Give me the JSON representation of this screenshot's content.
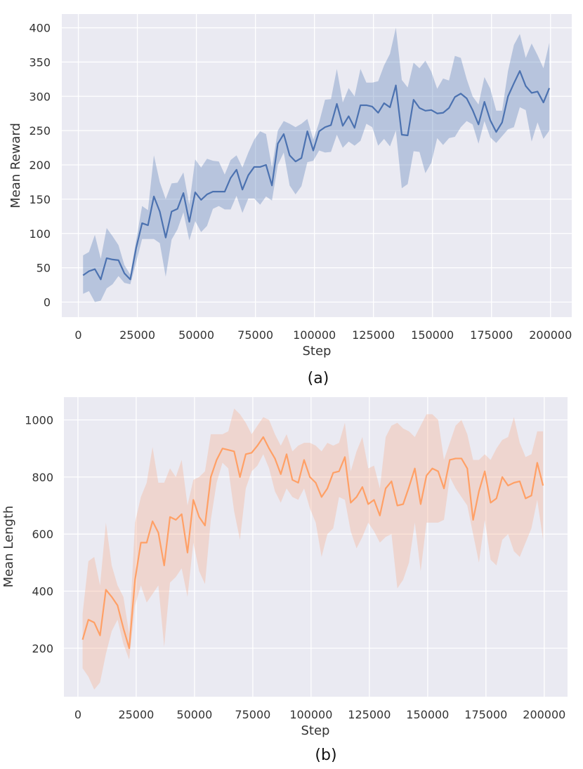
{
  "chart_data": [
    {
      "type": "line",
      "caption": "(a)",
      "xlabel": "Step",
      "ylabel": "Mean Reward",
      "xlim": [
        -7000,
        209000
      ],
      "ylim": [
        -22,
        420
      ],
      "xticks": [
        0,
        25000,
        50000,
        75000,
        100000,
        125000,
        150000,
        175000,
        200000
      ],
      "yticks": [
        0,
        50,
        100,
        150,
        200,
        250,
        300,
        350,
        400
      ],
      "grid": true,
      "legend": "none",
      "colors": {
        "line": "#4c72b0",
        "band": "#4c72b0",
        "background": "#eaeaf2",
        "grid": "#ffffff"
      },
      "x": [
        2000,
        4500,
        7000,
        9500,
        12000,
        14500,
        17000,
        19500,
        22000,
        24500,
        27000,
        29500,
        32000,
        34500,
        37000,
        39500,
        42000,
        44500,
        47000,
        49500,
        52000,
        54500,
        57000,
        59500,
        62000,
        64500,
        67000,
        69500,
        72000,
        74500,
        77000,
        79500,
        82000,
        84500,
        87000,
        89500,
        92000,
        94500,
        97000,
        99500,
        102000,
        104500,
        107000,
        109500,
        112000,
        114500,
        117000,
        119500,
        122000,
        124500,
        127000,
        129500,
        132000,
        134500,
        137000,
        139500,
        142000,
        144500,
        147000,
        149500,
        152000,
        154500,
        157000,
        159500,
        162000,
        164500,
        167000,
        169500,
        172000,
        174500,
        177000,
        179500,
        182000,
        184500,
        187000,
        189500,
        192000,
        194500,
        197000,
        199500
      ],
      "series": [
        {
          "mean": [
            39,
            45,
            48,
            33,
            64,
            62,
            61,
            42,
            33,
            79,
            115,
            112,
            154,
            132,
            94,
            132,
            136,
            159,
            117,
            160,
            149,
            157,
            161,
            161,
            161,
            181,
            193,
            164,
            185,
            197,
            197,
            200,
            170,
            231,
            245,
            214,
            205,
            210,
            249,
            221,
            249,
            255,
            258,
            289,
            257,
            271,
            254,
            287,
            287,
            285,
            276,
            290,
            284,
            316,
            244,
            243,
            295,
            283,
            279,
            280,
            275,
            276,
            283,
            299,
            304,
            297,
            280,
            259,
            292,
            265,
            248,
            262,
            300,
            319,
            337,
            315,
            305,
            307,
            291,
            312
          ],
          "lower": [
            12,
            16,
            0,
            2,
            20,
            26,
            38,
            28,
            26,
            58,
            92,
            92,
            92,
            86,
            37,
            91,
            106,
            131,
            90,
            118,
            102,
            111,
            136,
            140,
            135,
            135,
            155,
            130,
            151,
            151,
            142,
            154,
            148,
            200,
            218,
            170,
            157,
            169,
            204,
            206,
            221,
            218,
            219,
            244,
            225,
            234,
            228,
            235,
            260,
            255,
            228,
            238,
            227,
            250,
            166,
            172,
            220,
            219,
            188,
            203,
            239,
            229,
            239,
            241,
            255,
            264,
            259,
            231,
            264,
            240,
            232,
            242,
            252,
            255,
            284,
            280,
            234,
            262,
            238,
            250
          ],
          "upper": [
            68,
            73,
            98,
            63,
            108,
            96,
            83,
            54,
            40,
            90,
            140,
            134,
            214,
            175,
            150,
            173,
            174,
            189,
            142,
            208,
            196,
            209,
            206,
            205,
            186,
            207,
            214,
            196,
            218,
            237,
            249,
            245,
            196,
            250,
            264,
            260,
            255,
            260,
            267,
            237,
            262,
            295,
            296,
            340,
            291,
            312,
            300,
            340,
            320,
            320,
            322,
            345,
            362,
            400,
            324,
            313,
            349,
            341,
            352,
            336,
            311,
            326,
            323,
            359,
            356,
            325,
            300,
            288,
            328,
            311,
            279,
            279,
            337,
            375,
            391,
            356,
            377,
            360,
            341,
            378
          ]
        }
      ]
    },
    {
      "type": "line",
      "caption": "(b)",
      "xlabel": "Step",
      "ylabel": "Mean Length",
      "xlim": [
        -6000,
        210000
      ],
      "ylim": [
        30,
        1080
      ],
      "xticks": [
        0,
        25000,
        50000,
        75000,
        100000,
        125000,
        150000,
        175000,
        200000
      ],
      "yticks": [
        200,
        400,
        600,
        800,
        1000
      ],
      "grid": true,
      "legend": "none",
      "colors": {
        "line": "#ffa066",
        "band": "#f6b08e",
        "background": "#eaeaf2",
        "grid": "#ffffff"
      },
      "x": [
        2000,
        4500,
        7000,
        9500,
        12000,
        14500,
        17000,
        19500,
        22000,
        24500,
        27000,
        29500,
        32000,
        34500,
        37000,
        39500,
        42000,
        44500,
        47000,
        49500,
        52000,
        54500,
        57000,
        59500,
        62000,
        64500,
        67000,
        69500,
        72000,
        74500,
        77000,
        79500,
        82000,
        84500,
        87000,
        89500,
        92000,
        94500,
        97000,
        99500,
        102000,
        104500,
        107000,
        109500,
        112000,
        114500,
        117000,
        119500,
        122000,
        124500,
        127000,
        129500,
        132000,
        134500,
        137000,
        139500,
        142000,
        144500,
        147000,
        149500,
        152000,
        154500,
        157000,
        159500,
        162000,
        164500,
        167000,
        169500,
        172000,
        174500,
        177000,
        179500,
        182000,
        184500,
        187000,
        189500,
        192000,
        194500,
        197000,
        199500
      ],
      "series": [
        {
          "mean": [
            230,
            300,
            290,
            245,
            405,
            380,
            350,
            270,
            200,
            440,
            570,
            570,
            645,
            605,
            490,
            660,
            650,
            670,
            535,
            720,
            660,
            630,
            800,
            860,
            900,
            895,
            890,
            800,
            880,
            885,
            910,
            940,
            900,
            865,
            810,
            880,
            790,
            780,
            860,
            800,
            780,
            730,
            760,
            815,
            820,
            870,
            710,
            730,
            765,
            705,
            720,
            665,
            760,
            785,
            700,
            705,
            765,
            830,
            705,
            805,
            830,
            820,
            760,
            860,
            865,
            865,
            830,
            650,
            750,
            820,
            710,
            725,
            800,
            770,
            780,
            785,
            725,
            735,
            850,
            770
          ],
          "lower": [
            130,
            100,
            55,
            80,
            180,
            260,
            300,
            215,
            160,
            350,
            420,
            360,
            390,
            420,
            205,
            430,
            450,
            480,
            380,
            570,
            470,
            425,
            650,
            780,
            850,
            830,
            680,
            580,
            760,
            820,
            840,
            880,
            830,
            750,
            710,
            760,
            730,
            720,
            760,
            690,
            640,
            520,
            600,
            620,
            730,
            720,
            610,
            550,
            590,
            640,
            610,
            570,
            590,
            600,
            410,
            440,
            500,
            640,
            470,
            640,
            640,
            640,
            650,
            800,
            760,
            730,
            700,
            600,
            500,
            650,
            510,
            490,
            580,
            600,
            540,
            520,
            570,
            620,
            720,
            580
          ],
          "upper": [
            320,
            505,
            520,
            420,
            640,
            490,
            420,
            380,
            250,
            640,
            730,
            780,
            905,
            780,
            780,
            830,
            800,
            860,
            700,
            790,
            800,
            820,
            950,
            950,
            950,
            960,
            1040,
            1020,
            990,
            950,
            980,
            1010,
            1000,
            950,
            910,
            950,
            890,
            910,
            920,
            920,
            910,
            890,
            920,
            910,
            920,
            990,
            820,
            890,
            940,
            830,
            840,
            760,
            940,
            980,
            990,
            970,
            960,
            940,
            980,
            1020,
            1020,
            1000,
            860,
            920,
            980,
            1000,
            950,
            860,
            860,
            880,
            860,
            900,
            930,
            940,
            1010,
            920,
            870,
            880,
            960,
            960
          ]
        }
      ]
    }
  ]
}
